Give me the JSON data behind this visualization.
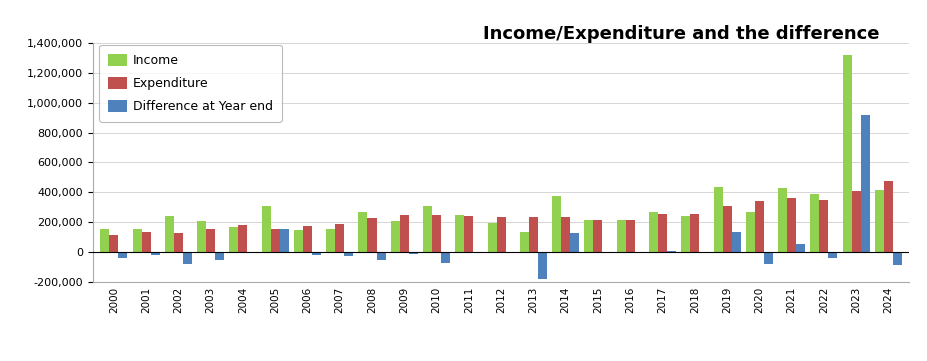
{
  "years": [
    2000,
    2001,
    2002,
    2003,
    2004,
    2005,
    2006,
    2007,
    2008,
    2009,
    2010,
    2011,
    2012,
    2013,
    2014,
    2015,
    2016,
    2017,
    2018,
    2019,
    2020,
    2021,
    2022,
    2023,
    2024
  ],
  "income": [
    150000,
    150000,
    240000,
    210000,
    165000,
    310000,
    145000,
    150000,
    270000,
    210000,
    310000,
    245000,
    195000,
    135000,
    375000,
    215000,
    215000,
    265000,
    240000,
    435000,
    265000,
    430000,
    390000,
    1320000,
    415000
  ],
  "expenditure": [
    110000,
    130000,
    125000,
    150000,
    180000,
    150000,
    170000,
    190000,
    225000,
    250000,
    250000,
    240000,
    235000,
    235000,
    235000,
    215000,
    215000,
    255000,
    255000,
    310000,
    340000,
    360000,
    350000,
    410000,
    475000
  ],
  "difference": [
    -45000,
    -20000,
    -80000,
    -55000,
    -10000,
    155000,
    -20000,
    -25000,
    -55000,
    -15000,
    -75000,
    -5000,
    -5000,
    -185000,
    125000,
    0,
    -5000,
    5000,
    -5000,
    130000,
    -85000,
    55000,
    -45000,
    920000,
    -90000
  ],
  "title": "Income/Expenditure and the difference",
  "legend_labels": [
    "Income",
    "Expenditure",
    "Difference at Year end"
  ],
  "income_color": "#92d050",
  "expenditure_color": "#c0504d",
  "difference_color": "#4f81bd",
  "ylim_min": -200000,
  "ylim_max": 1400000,
  "ytick_step": 200000,
  "background_color": "#ffffff",
  "plot_bg_color": "#ffffff"
}
